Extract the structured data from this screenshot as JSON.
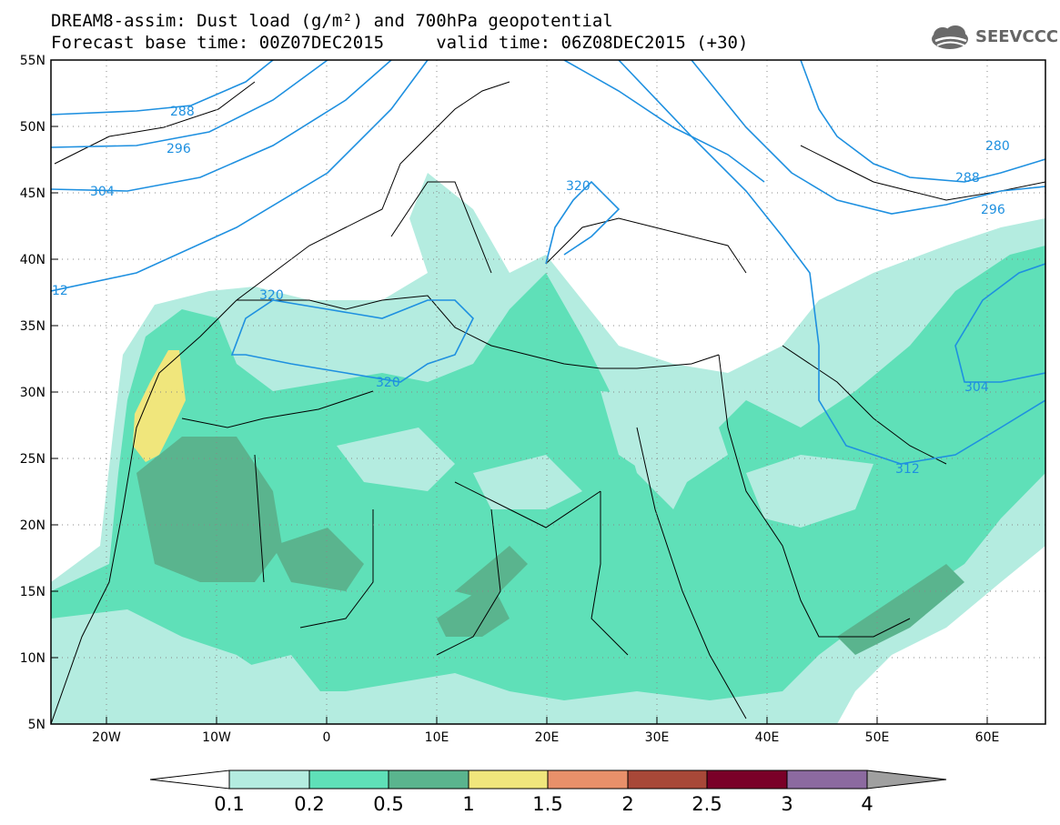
{
  "header": {
    "line1": "DREAM8-assim: Dust load (g/m²) and 700hPa geopotential",
    "line2": "Forecast base time: 00Z07DEC2015     valid time: 06Z08DEC2015 (+30)"
  },
  "logo": {
    "text": "SEEVCCC",
    "icon": "cloud-logo-icon"
  },
  "axes": {
    "lat_labels": [
      "55N",
      "50N",
      "45N",
      "40N",
      "35N",
      "30N",
      "25N",
      "20N",
      "15N",
      "10N",
      "5N"
    ],
    "lon_labels": [
      "20W",
      "10W",
      "0",
      "10E",
      "20E",
      "30E",
      "40E",
      "50E",
      "60E"
    ]
  },
  "contours": {
    "labels": [
      "288",
      "296",
      "304",
      "12",
      "320",
      "320",
      "320",
      "280",
      "288",
      "296",
      "304",
      "312"
    ],
    "color": "#1e90e0"
  },
  "colorbar": {
    "ticks": [
      "0.1",
      "0.2",
      "0.5",
      "1",
      "1.5",
      "2",
      "2.5",
      "3",
      "4"
    ],
    "colors": [
      "#b4ece0",
      "#5fe0b8",
      "#5ab48e",
      "#f0e67c",
      "#e8906a",
      "#a84838",
      "#7a0028",
      "#8c6aa0",
      "#a0a0a0"
    ]
  }
}
